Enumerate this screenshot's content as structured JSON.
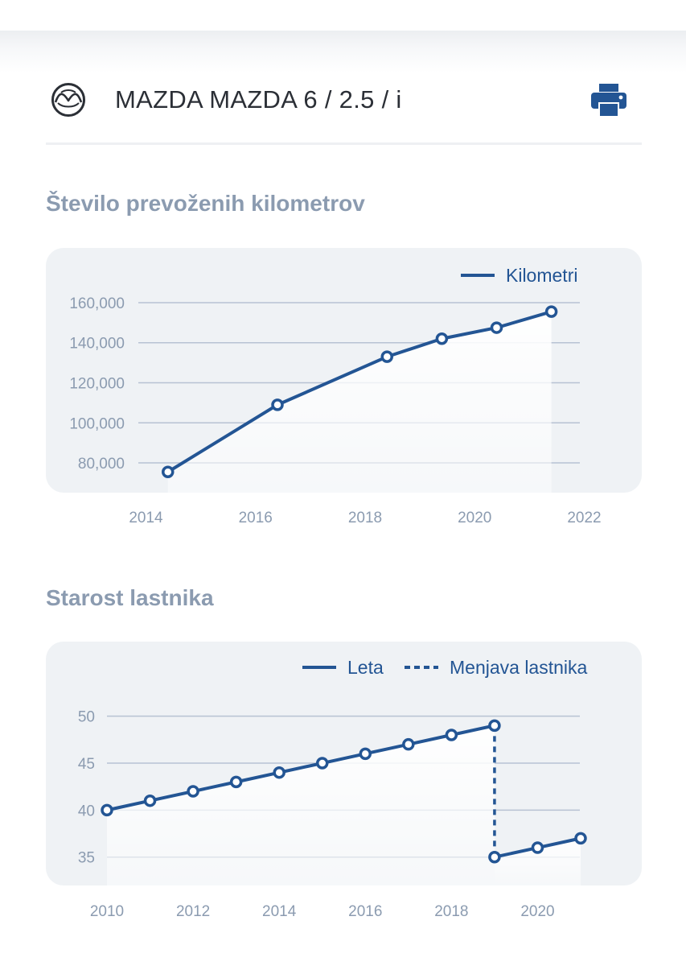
{
  "vehicle": {
    "title": "MAZDA MAZDA 6 / 2.5 / i",
    "logo_icon": "mazda-logo-icon",
    "print_icon": "printer-icon"
  },
  "colors": {
    "accent": "#235594",
    "muted_text": "#8b9bb0",
    "card_bg": "#eff2f5",
    "grid": "#b7c2d3"
  },
  "sections": {
    "km_title": "Število prevoženih kilometrov",
    "age_title": "Starost lastnika"
  },
  "chart_data": [
    {
      "type": "line",
      "title": "Število prevoženih kilometrov",
      "legend": [
        "Kilometri"
      ],
      "legend_position": "top-right",
      "grid": true,
      "xlim": [
        2013.2,
        2022.8
      ],
      "ylim": [
        76000,
        164000
      ],
      "x_ticks": [
        2014,
        2016,
        2018,
        2020,
        2022
      ],
      "x_tick_labels": [
        "2014",
        "2016",
        "2018",
        "2020",
        "2022"
      ],
      "y_ticks": [
        80000,
        100000,
        120000,
        140000,
        160000
      ],
      "y_tick_labels": [
        "80,000",
        "100,000",
        "120,000",
        "140,000",
        "160,000"
      ],
      "series": [
        {
          "name": "Kilometri",
          "x": [
            2014.4,
            2016.4,
            2018.4,
            2019.4,
            2020.4,
            2021.4
          ],
          "y": [
            75500,
            109000,
            133000,
            142000,
            147500,
            155500
          ]
        }
      ]
    },
    {
      "type": "line",
      "title": "Starost lastnika",
      "legend": [
        "Leta",
        "Menjava lastnika"
      ],
      "legend_position": "top-right",
      "grid": true,
      "xlim": [
        2010,
        2021
      ],
      "ylim": [
        34,
        51
      ],
      "x_ticks": [
        2010,
        2012,
        2014,
        2016,
        2018,
        2020
      ],
      "x_tick_labels": [
        "2010",
        "2012",
        "2014",
        "2016",
        "2018",
        "2020"
      ],
      "y_ticks": [
        35,
        40,
        45,
        50
      ],
      "y_tick_labels": [
        "35",
        "40",
        "45",
        "50"
      ],
      "series": [
        {
          "name": "Leta",
          "segments": [
            {
              "x": [
                2010,
                2011,
                2012,
                2013,
                2014,
                2015,
                2016,
                2017,
                2018,
                2019
              ],
              "y": [
                40,
                41,
                42,
                43,
                44,
                45,
                46,
                47,
                48,
                49
              ]
            },
            {
              "x": [
                2019,
                2020,
                2021
              ],
              "y": [
                35,
                36,
                37
              ]
            }
          ]
        },
        {
          "name": "Menjava lastnika",
          "style": "dashed",
          "x": [
            2019,
            2019
          ],
          "y": [
            49,
            35
          ]
        }
      ]
    }
  ]
}
